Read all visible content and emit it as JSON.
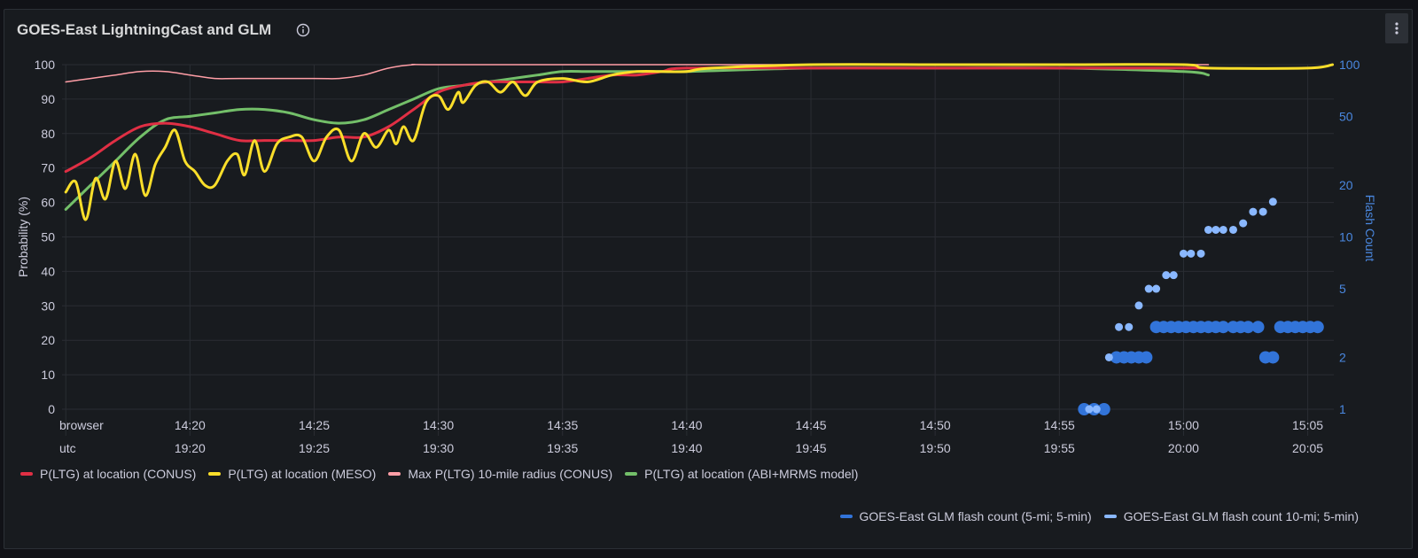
{
  "panel": {
    "title": "GOES-East LightningCast and GLM",
    "info_icon": "info-circle-icon",
    "menu_icon": "kebab-menu-icon"
  },
  "colors": {
    "conus": "#e02f44",
    "meso": "#fade2a",
    "max10": "#ff9ea6",
    "abi": "#73bf69",
    "glm5": "#3274d9",
    "glm10": "#8ab8ff",
    "right_axis": "#4a88e0"
  },
  "chart_data": {
    "type": "line",
    "title": "GOES-East LightningCast and GLM",
    "ylabel": "Probability (%)",
    "y2label": "Flash Count",
    "ylim": [
      0,
      100
    ],
    "y2lim": [
      1,
      100
    ],
    "y2scale": "log",
    "yticks": [
      0,
      10,
      20,
      30,
      40,
      50,
      60,
      70,
      80,
      90,
      100
    ],
    "y2ticks": [
      1,
      2,
      5,
      10,
      20,
      50,
      100
    ],
    "xlim": [
      "14:15",
      "15:06"
    ],
    "timezone_rows": [
      {
        "label": "browser",
        "ticks": [
          "14:20",
          "14:25",
          "14:30",
          "14:35",
          "14:40",
          "14:45",
          "14:50",
          "14:55",
          "15:00",
          "15:05"
        ]
      },
      {
        "label": "utc",
        "ticks": [
          "19:20",
          "19:25",
          "19:30",
          "19:35",
          "19:40",
          "19:45",
          "19:50",
          "19:55",
          "20:00",
          "20:05"
        ]
      }
    ],
    "grid": true,
    "series": [
      {
        "name": "P(LTG) at location (CONUS)",
        "color_key": "conus",
        "axis": "left",
        "style": "line",
        "points": [
          [
            "14:15",
            69
          ],
          [
            "14:16",
            73
          ],
          [
            "14:17",
            78
          ],
          [
            "14:18",
            82
          ],
          [
            "14:19",
            83
          ],
          [
            "14:20",
            82
          ],
          [
            "14:21",
            80
          ],
          [
            "14:22",
            78
          ],
          [
            "14:23",
            78
          ],
          [
            "14:24",
            78
          ],
          [
            "14:25",
            78
          ],
          [
            "14:26",
            79
          ],
          [
            "14:27",
            79
          ],
          [
            "14:28",
            82
          ],
          [
            "14:29",
            87
          ],
          [
            "14:30",
            92
          ],
          [
            "14:31",
            94
          ],
          [
            "14:32",
            95
          ],
          [
            "14:33",
            95
          ],
          [
            "14:34",
            95
          ],
          [
            "14:35",
            95
          ],
          [
            "14:36",
            96
          ],
          [
            "14:37",
            97
          ],
          [
            "14:38",
            97
          ],
          [
            "14:39",
            98
          ],
          [
            "14:40",
            99
          ],
          [
            "14:45",
            99
          ],
          [
            "14:50",
            99
          ],
          [
            "14:55",
            99
          ],
          [
            "15:00",
            99
          ],
          [
            "15:01",
            99
          ]
        ]
      },
      {
        "name": "P(LTG) at location (MESO)",
        "color_key": "meso",
        "axis": "left",
        "style": "line",
        "points": [
          [
            "14:15",
            63
          ],
          [
            "14:15.4",
            66
          ],
          [
            "14:15.8",
            55
          ],
          [
            "14:16.2",
            67
          ],
          [
            "14:16.6",
            61
          ],
          [
            "14:17",
            72
          ],
          [
            "14:17.4",
            64
          ],
          [
            "14:17.8",
            74
          ],
          [
            "14:18.2",
            62
          ],
          [
            "14:18.6",
            71
          ],
          [
            "14:19",
            76
          ],
          [
            "14:19.4",
            81
          ],
          [
            "14:19.8",
            72
          ],
          [
            "14:20.2",
            69
          ],
          [
            "14:20.6",
            65
          ],
          [
            "14:21",
            65
          ],
          [
            "14:21.5",
            72
          ],
          [
            "14:21.9",
            74
          ],
          [
            "14:22.2",
            68
          ],
          [
            "14:22.6",
            78
          ],
          [
            "14:23",
            69
          ],
          [
            "14:23.5",
            77
          ],
          [
            "14:24",
            79
          ],
          [
            "14:24.5",
            79
          ],
          [
            "14:25",
            72
          ],
          [
            "14:25.5",
            79
          ],
          [
            "14:26",
            81
          ],
          [
            "14:26.5",
            72
          ],
          [
            "14:27",
            80
          ],
          [
            "14:27.5",
            76
          ],
          [
            "14:28",
            81
          ],
          [
            "14:28.3",
            77
          ],
          [
            "14:28.6",
            82
          ],
          [
            "14:29",
            78
          ],
          [
            "14:29.5",
            89
          ],
          [
            "14:30",
            91
          ],
          [
            "14:30.4",
            87
          ],
          [
            "14:30.8",
            92
          ],
          [
            "14:31",
            89
          ],
          [
            "14:31.5",
            94
          ],
          [
            "14:32",
            95
          ],
          [
            "14:32.5",
            92
          ],
          [
            "14:33",
            95
          ],
          [
            "14:33.5",
            91
          ],
          [
            "14:34",
            95
          ],
          [
            "14:35",
            96
          ],
          [
            "14:36",
            95
          ],
          [
            "14:37",
            97
          ],
          [
            "14:38",
            98
          ],
          [
            "14:39",
            98
          ],
          [
            "14:40",
            98
          ],
          [
            "14:41",
            99
          ],
          [
            "14:45",
            100
          ],
          [
            "14:50",
            100
          ],
          [
            "14:55",
            100
          ],
          [
            "15:00",
            100
          ],
          [
            "15:01",
            99
          ],
          [
            "15:05",
            99
          ],
          [
            "15:06",
            100
          ]
        ]
      },
      {
        "name": "Max P(LTG) 10-mile radius (CONUS)",
        "color_key": "max10",
        "axis": "left",
        "style": "line",
        "points": [
          [
            "14:15",
            95
          ],
          [
            "14:16",
            96
          ],
          [
            "14:17",
            97
          ],
          [
            "14:18",
            98
          ],
          [
            "14:19",
            98
          ],
          [
            "14:20",
            97
          ],
          [
            "14:21",
            96
          ],
          [
            "14:22",
            96
          ],
          [
            "14:25",
            96
          ],
          [
            "14:26",
            96
          ],
          [
            "14:27",
            97
          ],
          [
            "14:28",
            99
          ],
          [
            "14:29",
            100
          ],
          [
            "14:30",
            100
          ],
          [
            "14:40",
            100
          ],
          [
            "14:50",
            100
          ],
          [
            "14:55",
            100
          ],
          [
            "15:00",
            100
          ],
          [
            "15:01",
            100
          ]
        ]
      },
      {
        "name": "P(LTG) at location (ABI+MRMS model)",
        "color_key": "abi",
        "axis": "left",
        "style": "line",
        "points": [
          [
            "14:15",
            58
          ],
          [
            "14:16",
            65
          ],
          [
            "14:17",
            72
          ],
          [
            "14:18",
            79
          ],
          [
            "14:19",
            84
          ],
          [
            "14:20",
            85
          ],
          [
            "14:21",
            86
          ],
          [
            "14:22",
            87
          ],
          [
            "14:23",
            87
          ],
          [
            "14:24",
            86
          ],
          [
            "14:25",
            84
          ],
          [
            "14:26",
            83
          ],
          [
            "14:27",
            84
          ],
          [
            "14:28",
            87
          ],
          [
            "14:29",
            90
          ],
          [
            "14:30",
            93
          ],
          [
            "14:31",
            94
          ],
          [
            "14:32",
            95
          ],
          [
            "14:33",
            96
          ],
          [
            "14:34",
            97
          ],
          [
            "14:35",
            98
          ],
          [
            "14:36",
            98
          ],
          [
            "14:37",
            98
          ],
          [
            "14:38",
            98
          ],
          [
            "14:39",
            98
          ],
          [
            "14:40",
            98
          ],
          [
            "14:45",
            99
          ],
          [
            "14:50",
            99
          ],
          [
            "14:55",
            99
          ],
          [
            "15:00",
            98
          ],
          [
            "15:01",
            97
          ]
        ]
      }
    ],
    "points_series": [
      {
        "name": "GOES-East GLM flash count (5-mi; 5-min)",
        "color_key": "glm5",
        "axis": "right",
        "style": "points",
        "points": [
          [
            "14:56.0",
            1
          ],
          [
            "14:56.4",
            1
          ],
          [
            "14:56.8",
            1
          ],
          [
            "14:57.3",
            2
          ],
          [
            "14:57.6",
            2
          ],
          [
            "14:57.9",
            2
          ],
          [
            "14:58.2",
            2
          ],
          [
            "14:58.5",
            2
          ],
          [
            "14:58.9",
            3
          ],
          [
            "14:59.2",
            3
          ],
          [
            "14:59.5",
            3
          ],
          [
            "14:59.8",
            3
          ],
          [
            "15:00.1",
            3
          ],
          [
            "15:00.4",
            3
          ],
          [
            "15:00.7",
            3
          ],
          [
            "15:01.0",
            3
          ],
          [
            "15:01.3",
            3
          ],
          [
            "15:01.6",
            3
          ],
          [
            "15:02.0",
            3
          ],
          [
            "15:02.3",
            3
          ],
          [
            "15:02.6",
            3
          ],
          [
            "15:03.0",
            3
          ],
          [
            "15:03.3",
            2
          ],
          [
            "15:03.6",
            2
          ],
          [
            "15:03.9",
            3
          ],
          [
            "15:04.2",
            3
          ],
          [
            "15:04.5",
            3
          ],
          [
            "15:04.8",
            3
          ],
          [
            "15:05.1",
            3
          ],
          [
            "15:05.4",
            3
          ]
        ]
      },
      {
        "name": "GOES-East GLM flash count 10-mi; 5-min)",
        "color_key": "glm10",
        "axis": "right",
        "style": "points",
        "points": [
          [
            "14:56.2",
            1
          ],
          [
            "14:56.5",
            1
          ],
          [
            "14:57.0",
            2
          ],
          [
            "14:57.4",
            3
          ],
          [
            "14:57.8",
            3
          ],
          [
            "14:58.2",
            4
          ],
          [
            "14:58.6",
            5
          ],
          [
            "14:58.9",
            5
          ],
          [
            "14:59.3",
            6
          ],
          [
            "14:59.6",
            6
          ],
          [
            "15:00.0",
            8
          ],
          [
            "15:00.3",
            8
          ],
          [
            "15:00.7",
            8
          ],
          [
            "15:01.0",
            11
          ],
          [
            "15:01.3",
            11
          ],
          [
            "15:01.6",
            11
          ],
          [
            "15:02.0",
            11
          ],
          [
            "15:02.4",
            12
          ],
          [
            "15:02.8",
            14
          ],
          [
            "15:03.2",
            14
          ],
          [
            "15:03.6",
            16
          ]
        ]
      }
    ]
  },
  "legend": {
    "row1": [
      {
        "label": "P(LTG) at location (CONUS)",
        "color_key": "conus"
      },
      {
        "label": "P(LTG) at location (MESO)",
        "color_key": "meso"
      },
      {
        "label": "Max P(LTG) 10-mile radius (CONUS)",
        "color_key": "max10"
      },
      {
        "label": "P(LTG) at location (ABI+MRMS model)",
        "color_key": "abi"
      }
    ],
    "row2": [
      {
        "label": "GOES-East GLM flash count (5-mi; 5-min)",
        "color_key": "glm5"
      },
      {
        "label": "GOES-East GLM flash count 10-mi; 5-min)",
        "color_key": "glm10"
      }
    ]
  }
}
